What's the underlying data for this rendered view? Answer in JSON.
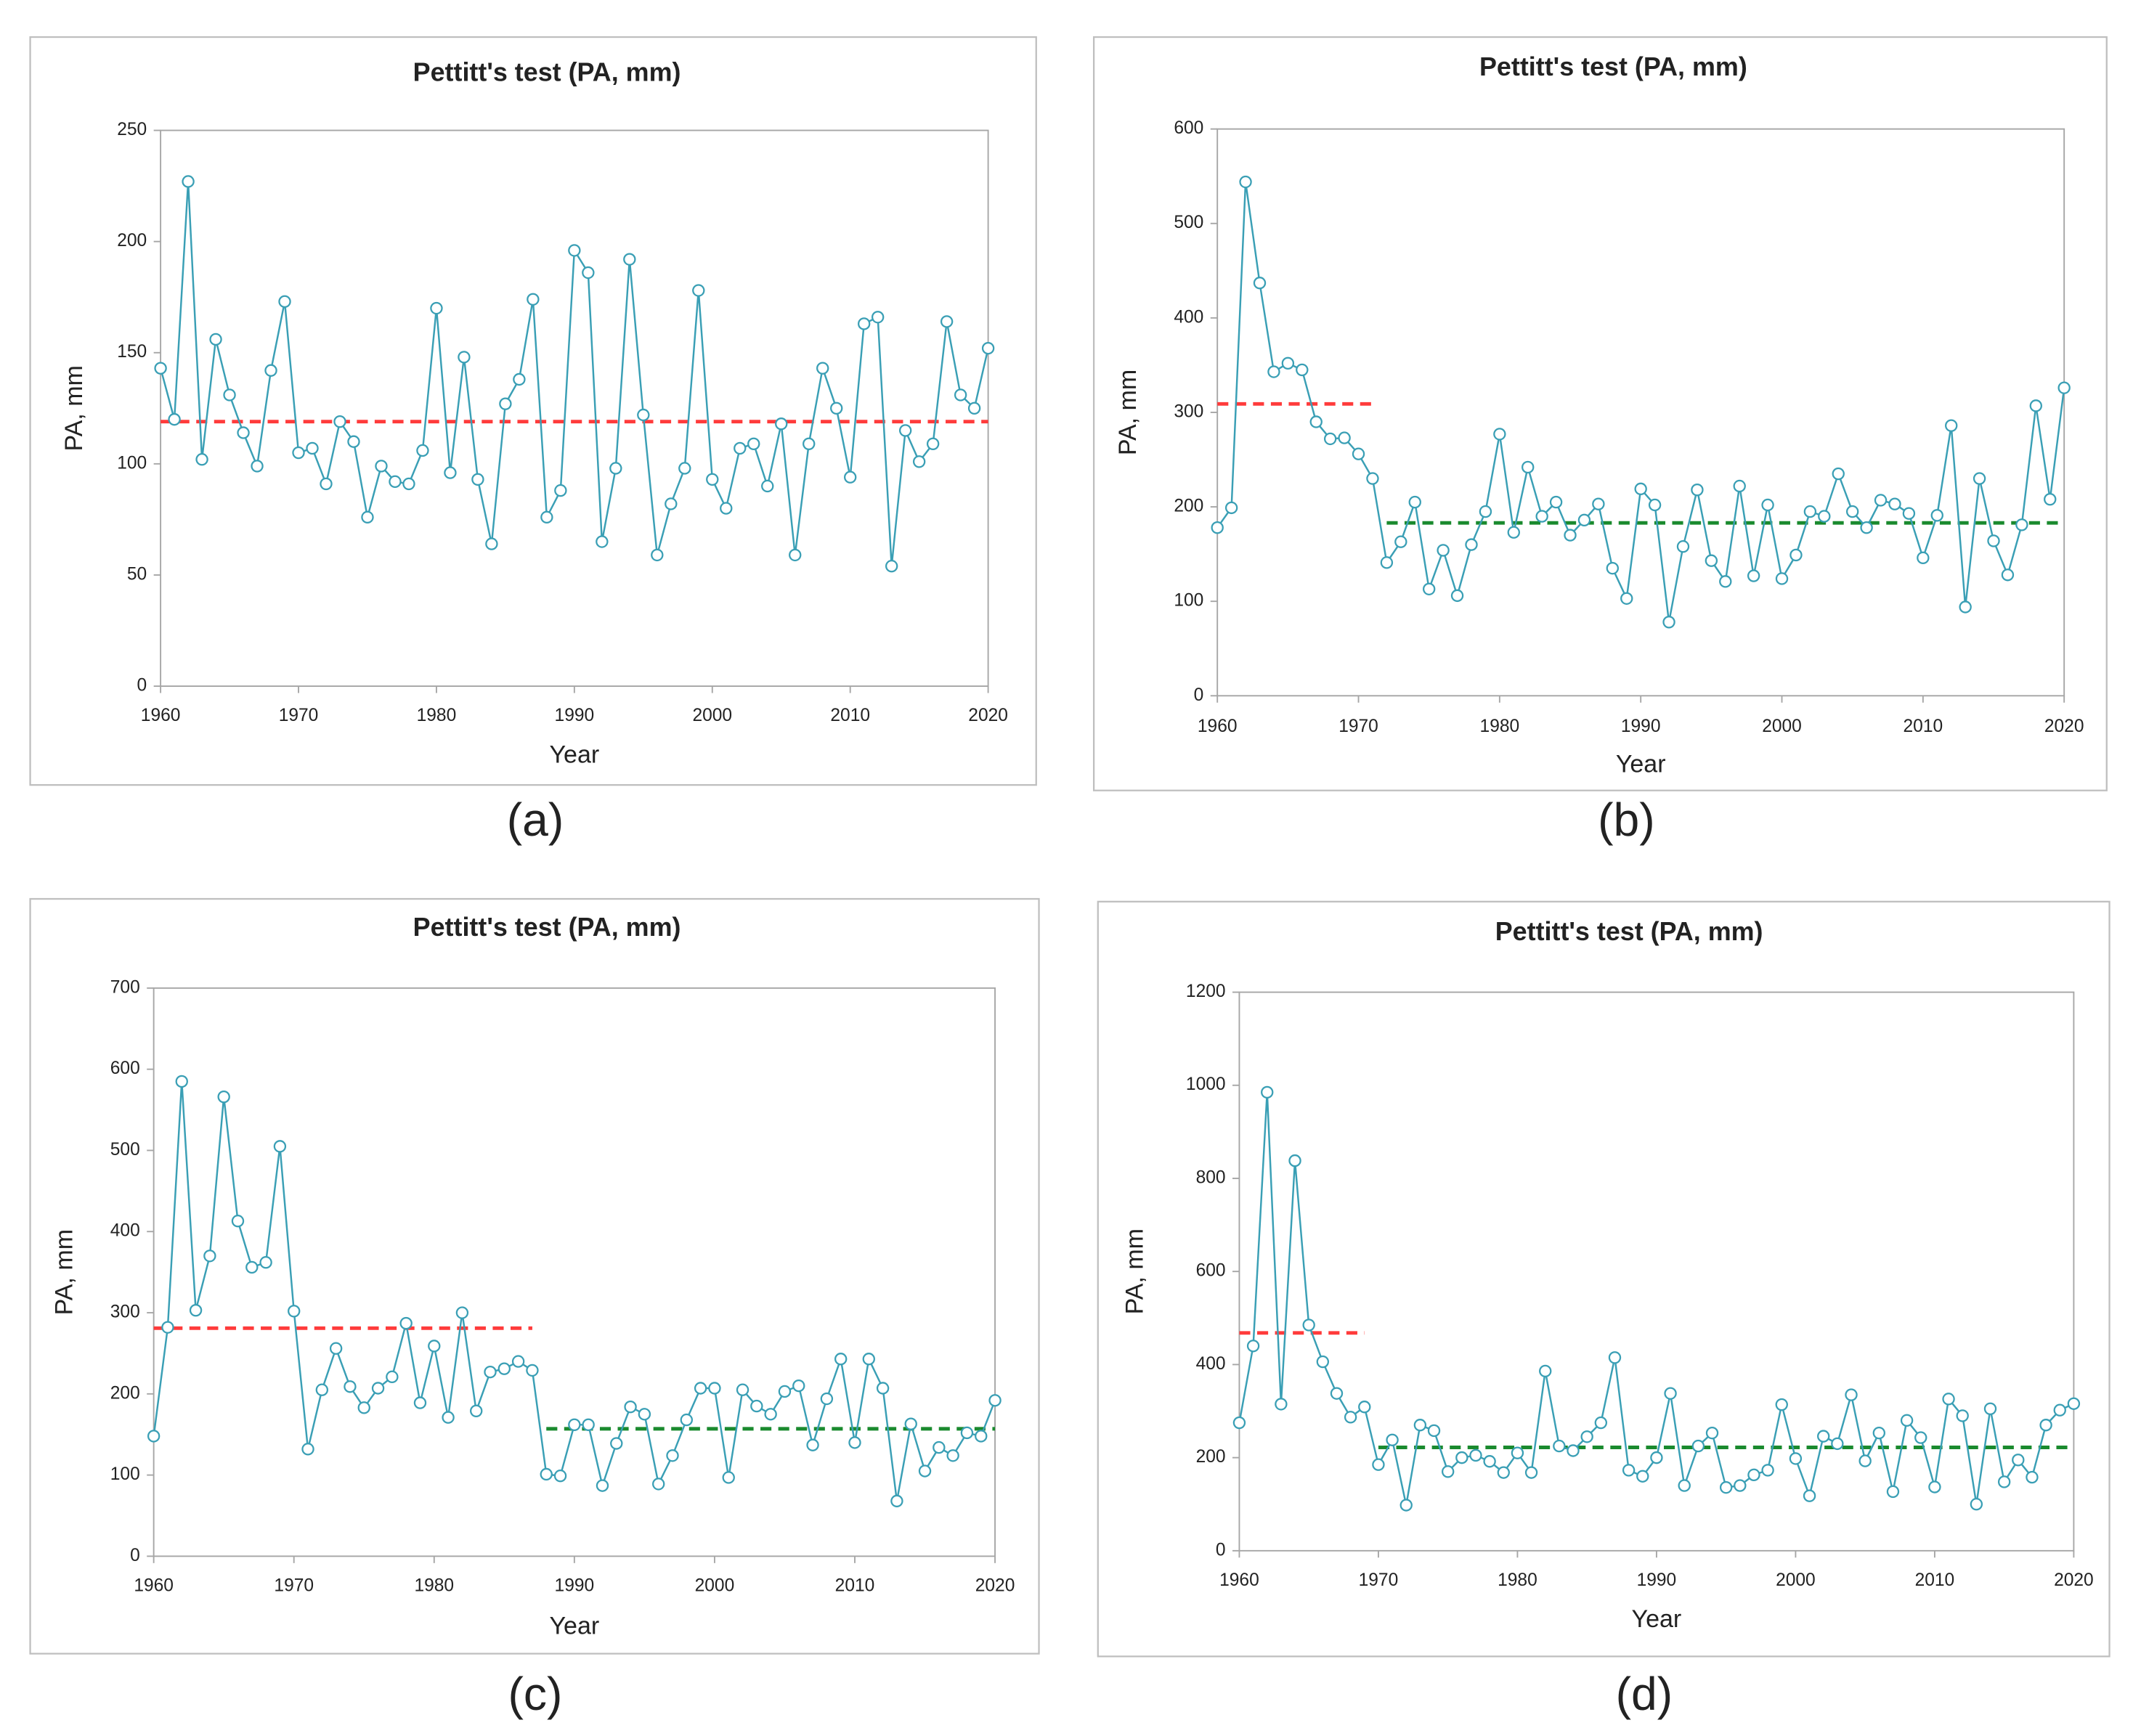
{
  "chart_data": [
    {
      "type": "line",
      "title": "Pettitt's test (PA, mm)",
      "x_label": "Year",
      "y_label": "PA, mm",
      "panel_label": "(a)",
      "color": "#3a9fb5",
      "x": [
        1960,
        1961,
        1962,
        1963,
        1964,
        1965,
        1966,
        1967,
        1968,
        1969,
        1970,
        1971,
        1972,
        1973,
        1974,
        1975,
        1976,
        1977,
        1978,
        1979,
        1980,
        1981,
        1982,
        1983,
        1984,
        1985,
        1986,
        1987,
        1988,
        1989,
        1990,
        1991,
        1992,
        1993,
        1994,
        1995,
        1996,
        1997,
        1998,
        1999,
        2000,
        2001,
        2002,
        2003,
        2004,
        2005,
        2006,
        2007,
        2008,
        2009,
        2010,
        2011,
        2012,
        2013,
        2014,
        2015,
        2016,
        2017,
        2018,
        2019,
        2020
      ],
      "values": [
        143,
        120,
        227,
        102,
        156,
        131,
        114,
        99,
        142,
        173,
        105,
        107,
        91,
        119,
        110,
        76,
        99,
        92,
        91,
        106,
        170,
        96,
        148,
        93,
        64,
        127,
        138,
        174,
        76,
        88,
        196,
        186,
        65,
        98,
        192,
        122,
        59,
        82,
        98,
        178,
        93,
        80,
        107,
        109,
        90,
        118,
        59,
        109,
        143,
        125,
        94,
        163,
        166,
        54,
        115,
        101,
        109,
        164,
        131,
        125,
        152
      ],
      "xlim": [
        1960,
        2020
      ],
      "xticks": [
        1960,
        1970,
        1980,
        1990,
        2000,
        2010,
        2020
      ],
      "ylim": [
        0,
        250
      ],
      "yticks": [
        0,
        50,
        100,
        150,
        200,
        250
      ],
      "mean_lines": [
        {
          "start": 1960,
          "end": 2020,
          "value": 119,
          "color": "#ff3b3b"
        }
      ]
    },
    {
      "type": "line",
      "title": "Pettitt's test (PA, mm)",
      "x_label": "Year",
      "y_label": "PA, mm",
      "panel_label": "(b)",
      "color": "#3a9fb5",
      "x": [
        1960,
        1961,
        1962,
        1963,
        1964,
        1965,
        1966,
        1967,
        1968,
        1969,
        1970,
        1971,
        1972,
        1973,
        1974,
        1975,
        1976,
        1977,
        1978,
        1979,
        1980,
        1981,
        1982,
        1983,
        1984,
        1985,
        1986,
        1987,
        1988,
        1989,
        1990,
        1991,
        1992,
        1993,
        1994,
        1995,
        1996,
        1997,
        1998,
        1999,
        2000,
        2001,
        2002,
        2003,
        2004,
        2005,
        2006,
        2007,
        2008,
        2009,
        2010,
        2011,
        2012,
        2013,
        2014,
        2015,
        2016,
        2017,
        2018,
        2019,
        2020
      ],
      "values": [
        178,
        199,
        544,
        437,
        343,
        352,
        345,
        290,
        272,
        273,
        256,
        230,
        141,
        163,
        205,
        113,
        154,
        106,
        160,
        195,
        277,
        173,
        242,
        190,
        205,
        170,
        186,
        203,
        135,
        103,
        219,
        202,
        78,
        158,
        218,
        143,
        121,
        222,
        127,
        202,
        124,
        149,
        195,
        190,
        235,
        195,
        178,
        207,
        203,
        193,
        146,
        191,
        286,
        94,
        230,
        164,
        128,
        181,
        307,
        208,
        326
      ],
      "xlim": [
        1960,
        2020
      ],
      "xticks": [
        1960,
        1970,
        1980,
        1990,
        2000,
        2010,
        2020
      ],
      "ylim": [
        0,
        600
      ],
      "yticks": [
        0,
        100,
        200,
        300,
        400,
        500,
        600
      ],
      "mean_lines": [
        {
          "start": 1960,
          "end": 1971,
          "value": 309,
          "color": "#ff3b3b"
        },
        {
          "start": 1972,
          "end": 2020,
          "value": 183,
          "color": "#1a8a2e"
        }
      ]
    },
    {
      "type": "line",
      "title": "Pettitt's test (PA, mm)",
      "x_label": "Year",
      "y_label": "PA, mm",
      "panel_label": "(c)",
      "color": "#3a9fb5",
      "x": [
        1960,
        1961,
        1962,
        1963,
        1964,
        1965,
        1966,
        1967,
        1968,
        1969,
        1970,
        1971,
        1972,
        1973,
        1974,
        1975,
        1976,
        1977,
        1978,
        1979,
        1980,
        1981,
        1982,
        1983,
        1984,
        1985,
        1986,
        1987,
        1988,
        1989,
        1990,
        1991,
        1992,
        1993,
        1994,
        1995,
        1996,
        1997,
        1998,
        1999,
        2000,
        2001,
        2002,
        2003,
        2004,
        2005,
        2006,
        2007,
        2008,
        2009,
        2010,
        2011,
        2012,
        2013,
        2014,
        2015,
        2016,
        2017,
        2018,
        2019,
        2020
      ],
      "values": [
        148,
        282,
        585,
        303,
        370,
        566,
        413,
        356,
        362,
        505,
        302,
        132,
        205,
        256,
        209,
        183,
        207,
        221,
        287,
        189,
        259,
        171,
        300,
        179,
        227,
        231,
        240,
        229,
        101,
        99,
        162,
        162,
        87,
        139,
        184,
        175,
        89,
        124,
        168,
        207,
        207,
        97,
        205,
        185,
        175,
        203,
        210,
        137,
        194,
        243,
        140,
        243,
        207,
        68,
        163,
        105,
        134,
        124,
        152,
        148,
        192
      ],
      "xlim": [
        1960,
        2020
      ],
      "xticks": [
        1960,
        1970,
        1980,
        1990,
        2000,
        2010,
        2020
      ],
      "ylim": [
        0,
        700
      ],
      "yticks": [
        0,
        100,
        200,
        300,
        400,
        500,
        600,
        700
      ],
      "mean_lines": [
        {
          "start": 1960,
          "end": 1987,
          "value": 281,
          "color": "#ff3b3b"
        },
        {
          "start": 1988,
          "end": 2020,
          "value": 157,
          "color": "#1a8a2e"
        }
      ]
    },
    {
      "type": "line",
      "title": "Pettitt's test (PA, mm)",
      "x_label": "Year",
      "y_label": "PA, mm",
      "panel_label": "(d)",
      "color": "#3a9fb5",
      "x": [
        1960,
        1961,
        1962,
        1963,
        1964,
        1965,
        1966,
        1967,
        1968,
        1969,
        1970,
        1971,
        1972,
        1973,
        1974,
        1975,
        1976,
        1977,
        1978,
        1979,
        1980,
        1981,
        1982,
        1983,
        1984,
        1985,
        1986,
        1987,
        1988,
        1989,
        1990,
        1991,
        1992,
        1993,
        1994,
        1995,
        1996,
        1997,
        1998,
        1999,
        2000,
        2001,
        2002,
        2003,
        2004,
        2005,
        2006,
        2007,
        2008,
        2009,
        2010,
        2011,
        2012,
        2013,
        2014,
        2015,
        2016,
        2017,
        2018,
        2019,
        2020
      ],
      "values": [
        275,
        440,
        985,
        315,
        838,
        485,
        406,
        338,
        287,
        309,
        185,
        238,
        98,
        270,
        258,
        170,
        200,
        205,
        192,
        168,
        210,
        168,
        386,
        225,
        215,
        245,
        275,
        415,
        173,
        160,
        200,
        338,
        140,
        225,
        253,
        136,
        140,
        163,
        173,
        314,
        198,
        118,
        246,
        230,
        335,
        193,
        253,
        127,
        280,
        243,
        137,
        326,
        290,
        100,
        305,
        148,
        195,
        158,
        270,
        302,
        316
      ],
      "xlim": [
        1960,
        2020
      ],
      "xticks": [
        1960,
        1970,
        1980,
        1990,
        2000,
        2010,
        2020
      ],
      "ylim": [
        0,
        1200
      ],
      "yticks": [
        0,
        200,
        400,
        600,
        800,
        1000,
        1200
      ],
      "mean_lines": [
        {
          "start": 1960,
          "end": 1969,
          "value": 468,
          "color": "#ff3b3b"
        },
        {
          "start": 1970,
          "end": 2020,
          "value": 222,
          "color": "#1a8a2e"
        }
      ]
    }
  ]
}
